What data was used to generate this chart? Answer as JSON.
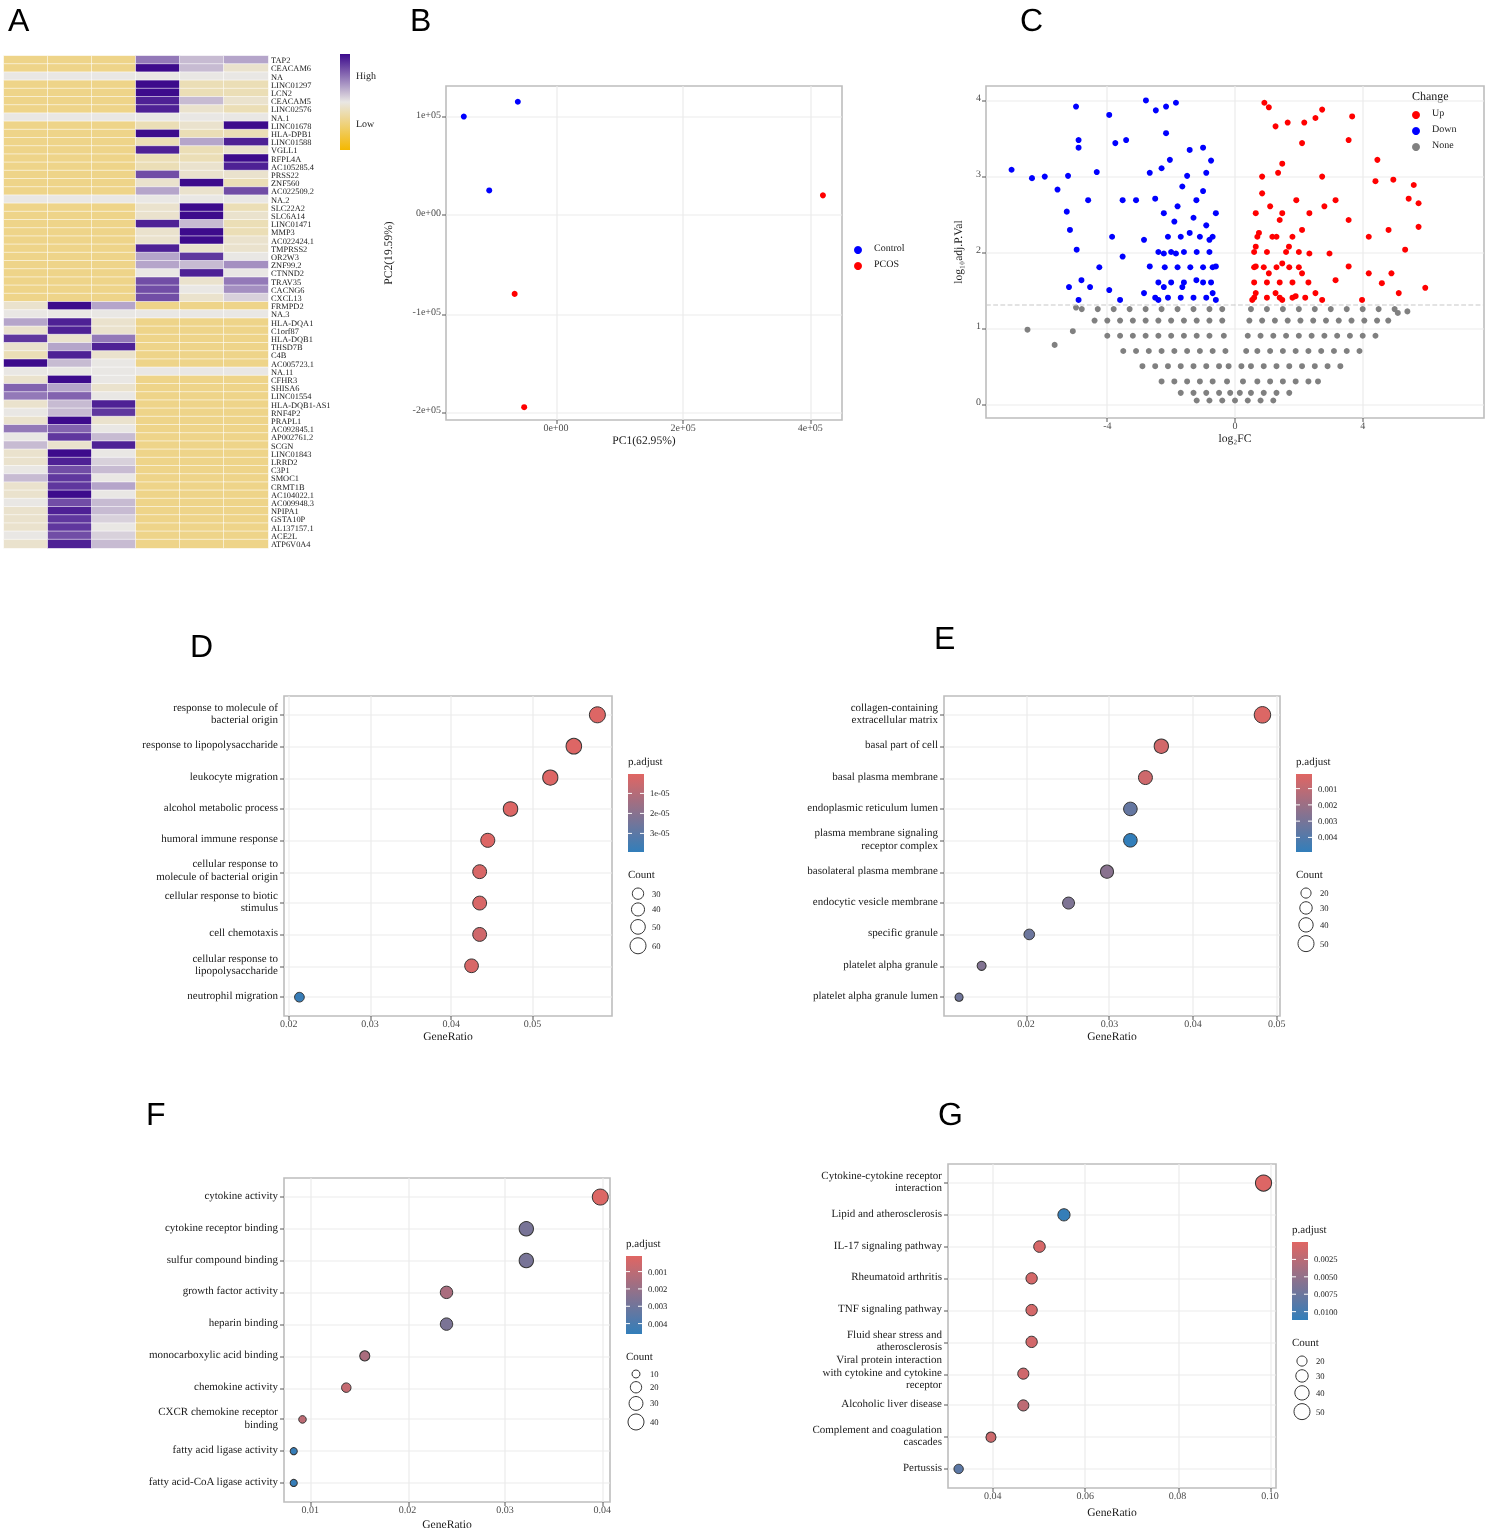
{
  "chart_data": [
    {
      "type": "heatmap",
      "title": "A",
      "categories": [
        null,
        null,
        null,
        null,
        null,
        null
      ],
      "y_categories": [
        "TAP2",
        "CEACAM6",
        "NA",
        "LINC01297",
        "LCN2",
        "CEACAM5",
        "LINC02576",
        "NA.1",
        "LINC01678",
        "HLA-DPB1",
        "LINC01588",
        "VGLL1",
        "RFPL4A",
        "AC105285.4",
        "PRSS22",
        "ZNF560",
        "AC022509.2",
        "NA.2",
        "SLC22A2",
        "SLC6A14",
        "LINC01471",
        "MMP3",
        "AC022424.1",
        "TMPRSS2",
        "OR2W3",
        "ZNF99.2",
        "CTNND2",
        "TRAV35",
        "CACNG6",
        "CXCL13",
        "FRMPD2",
        "NA.3",
        "HLA-DQA1",
        "C1orf87",
        "HLA-DQB1",
        "THSD7B",
        "C4B",
        "AC005723.1",
        "NA.11",
        "CFHR3",
        "SHISA6",
        "LINC01554",
        "HLA-DQB1-AS1",
        "RNF4P2",
        "PRAPL1",
        "AC092845.1",
        "AP002761.2",
        "SCGN",
        "LINC01843",
        "LRRD2",
        "C3P1",
        "SMOC1",
        "CRMT1B",
        "AC104022.1",
        "AC009948.3",
        "NPIPA1",
        "GSTA10P",
        "AL137157.1",
        "ACE2L",
        "ATP6V0A4"
      ],
      "cells": [
        [
          0.3,
          0.3,
          0.3,
          0.75,
          0.6,
          0.65
        ],
        [
          0.3,
          0.3,
          0.3,
          1,
          0.6,
          0.45
        ],
        [
          0.5,
          0.5,
          0.5,
          0.5,
          0.5,
          0.5
        ],
        [
          0.3,
          0.3,
          0.3,
          1,
          0.4,
          0.4
        ],
        [
          0.3,
          0.3,
          0.3,
          1,
          0.4,
          0.4
        ],
        [
          0.3,
          0.3,
          0.3,
          0.95,
          0.6,
          0.45
        ],
        [
          0.3,
          0.3,
          0.3,
          0.95,
          0.45,
          0.4
        ],
        [
          0.5,
          0.5,
          0.5,
          0.5,
          0.5,
          0.5
        ],
        [
          0.3,
          0.3,
          0.3,
          0.4,
          0.45,
          1
        ],
        [
          0.3,
          0.3,
          0.3,
          1,
          0.4,
          0.4
        ],
        [
          0.3,
          0.3,
          0.3,
          0.4,
          0.65,
          0.95
        ],
        [
          0.3,
          0.3,
          0.3,
          0.95,
          0.4,
          0.45
        ],
        [
          0.3,
          0.3,
          0.3,
          0.4,
          0.4,
          1
        ],
        [
          0.3,
          0.3,
          0.3,
          0.4,
          0.45,
          0.95
        ],
        [
          0.3,
          0.3,
          0.3,
          0.85,
          0.45,
          0.45
        ],
        [
          0.3,
          0.3,
          0.3,
          0.45,
          1,
          0.4
        ],
        [
          0.3,
          0.3,
          0.3,
          0.65,
          0.45,
          0.85
        ],
        [
          0.5,
          0.5,
          0.5,
          0.5,
          0.5,
          0.5
        ],
        [
          0.3,
          0.3,
          0.3,
          0.45,
          1,
          0.4
        ],
        [
          0.3,
          0.3,
          0.3,
          0.45,
          1,
          0.45
        ],
        [
          0.3,
          0.3,
          0.3,
          0.95,
          0.6,
          0.4
        ],
        [
          0.3,
          0.3,
          0.3,
          0.45,
          1,
          0.4
        ],
        [
          0.3,
          0.3,
          0.3,
          0.45,
          1,
          0.45
        ],
        [
          0.3,
          0.3,
          0.3,
          0.95,
          0.45,
          0.45
        ],
        [
          0.3,
          0.3,
          0.3,
          0.65,
          0.9,
          0.5
        ],
        [
          0.3,
          0.3,
          0.3,
          0.65,
          0.6,
          0.7
        ],
        [
          0.3,
          0.3,
          0.3,
          0.5,
          0.95,
          0.5
        ],
        [
          0.3,
          0.3,
          0.3,
          0.85,
          0.45,
          0.75
        ],
        [
          0.3,
          0.3,
          0.3,
          0.85,
          0.5,
          0.7
        ],
        [
          0.3,
          0.3,
          0.3,
          0.85,
          0.45,
          0.55
        ],
        [
          0.45,
          1,
          0.65,
          0.3,
          0.3,
          0.3
        ],
        [
          0.5,
          0.5,
          0.5,
          0.5,
          0.5,
          0.5
        ],
        [
          0.65,
          0.95,
          0.45,
          0.3,
          0.3,
          0.3
        ],
        [
          0.45,
          0.95,
          0.45,
          0.3,
          0.3,
          0.3
        ],
        [
          0.9,
          0.45,
          0.75,
          0.3,
          0.3,
          0.3
        ],
        [
          0.45,
          0.65,
          0.95,
          0.3,
          0.3,
          0.3
        ],
        [
          0.4,
          0.95,
          0.45,
          0.3,
          0.3,
          0.3
        ],
        [
          1,
          0.6,
          0.5,
          0.3,
          0.3,
          0.3
        ],
        [
          0.5,
          0.5,
          0.5,
          0.5,
          0.5,
          0.5
        ],
        [
          0.45,
          1,
          0.5,
          0.3,
          0.3,
          0.3
        ],
        [
          0.8,
          0.65,
          0.45,
          0.3,
          0.3,
          0.3
        ],
        [
          0.75,
          0.8,
          0.5,
          0.3,
          0.3,
          0.3
        ],
        [
          0.45,
          0.6,
          0.95,
          0.3,
          0.3,
          0.3
        ],
        [
          0.5,
          0.6,
          0.9,
          0.3,
          0.3,
          0.3
        ],
        [
          0.45,
          1,
          0.45,
          0.3,
          0.3,
          0.3
        ],
        [
          0.75,
          0.8,
          0.5,
          0.3,
          0.3,
          0.3
        ],
        [
          0.5,
          0.9,
          0.6,
          0.3,
          0.3,
          0.3
        ],
        [
          0.6,
          0.45,
          0.95,
          0.3,
          0.3,
          0.3
        ],
        [
          0.45,
          1,
          0.5,
          0.3,
          0.3,
          0.3
        ],
        [
          0.45,
          0.95,
          0.55,
          0.3,
          0.3,
          0.3
        ],
        [
          0.5,
          0.85,
          0.6,
          0.3,
          0.3,
          0.3
        ],
        [
          0.6,
          0.9,
          0.5,
          0.3,
          0.3,
          0.3
        ],
        [
          0.45,
          0.9,
          0.65,
          0.3,
          0.3,
          0.3
        ],
        [
          0.45,
          1,
          0.5,
          0.3,
          0.3,
          0.3
        ],
        [
          0.5,
          0.85,
          0.6,
          0.3,
          0.3,
          0.3
        ],
        [
          0.45,
          0.95,
          0.6,
          0.3,
          0.3,
          0.3
        ],
        [
          0.45,
          0.9,
          0.55,
          0.3,
          0.3,
          0.3
        ],
        [
          0.45,
          0.9,
          0.5,
          0.3,
          0.3,
          0.3
        ],
        [
          0.5,
          0.85,
          0.55,
          0.3,
          0.3,
          0.3
        ],
        [
          0.45,
          0.95,
          0.6,
          0.3,
          0.3,
          0.3
        ]
      ],
      "clim": [
        0,
        1
      ],
      "cticks": [
        {
          "value": 0.75,
          "label": "High"
        },
        {
          "value": 0.25,
          "label": "Low"
        }
      ]
    },
    {
      "type": "scatter",
      "title": "B",
      "xlabel": "PC1(62.95%)",
      "ylabel": "PC2(19.59%)",
      "series": [
        {
          "name": "Control",
          "color": "#0000ff",
          "x": [
            -145000,
            -60000,
            -105000
          ],
          "values": [
            100000,
            115000,
            25000
          ]
        },
        {
          "name": "PCOS",
          "color": "#ff0000",
          "x": [
            -65000,
            -50000,
            420000
          ],
          "values": [
            -80000,
            -195000,
            20000
          ]
        }
      ],
      "xlim": [
        -173000,
        450000
      ],
      "ylim": [
        -208000,
        131000
      ],
      "xticks": [
        {
          "value": 0,
          "label": "0e+00"
        },
        {
          "value": 200000,
          "label": "2e+05"
        },
        {
          "value": 400000,
          "label": "4e+05"
        }
      ],
      "yticks": [
        {
          "value": -200000,
          "label": "-2e+05"
        },
        {
          "value": -100000,
          "label": "-1e+05"
        },
        {
          "value": 0,
          "label": "0e+00"
        },
        {
          "value": 100000,
          "label": "1e+05"
        }
      ],
      "grid": true,
      "legend": "right",
      "marker": "circle"
    },
    {
      "type": "scatter",
      "title": "C",
      "xlabel": "log₂FC",
      "ylabel": "log₁₀adj.P.Val",
      "legend_title": "Change",
      "series": [
        {
          "name": "Up",
          "color": "#ff0000",
          "x": [
            0.92,
            1.06,
            1.27,
            1.65,
            2.17,
            2.52,
            2.73,
            3.67,
            2.1,
            3.56,
            4.46,
            4.4,
            4.96,
            5.6,
            5.44,
            5.75,
            5.75,
            4.81,
            5.33,
            4.19,
            3.56,
            3.15,
            2.73,
            1.48,
            0.85,
            0.85,
            1.35,
            1.92,
            2.33,
            1.48,
            0.75,
            1.17,
            1.69,
            2.33,
            2.96,
            3.56,
            4.19,
            4.6,
            5.13,
            5.96,
            4.9,
            3.15,
            2.52,
            1.9,
            1.27,
            0.65,
            0.65,
            1.06,
            1.48,
            2.1,
            0.65,
            0.54,
            1.48,
            2.73,
            3.98,
            2.1,
            1.4,
            0.65,
            0.6,
            1.0,
            1.4,
            1.8,
            2.2,
            0.6,
            1.0,
            1.4,
            1.8,
            2.3,
            0.6,
            0.9,
            1.3,
            1.7,
            2.0,
            0.6,
            1.0,
            1.6,
            2.0,
            0.7,
            1.3,
            1.8,
            2.8,
            1.1
          ],
          "values": [
            3.96,
            3.9,
            3.65,
            3.7,
            3.7,
            3.76,
            3.87,
            3.78,
            3.43,
            3.47,
            3.21,
            2.93,
            2.95,
            2.88,
            2.7,
            2.64,
            2.33,
            2.29,
            2.03,
            2.2,
            2.42,
            2.68,
            2.99,
            3.16,
            2.99,
            2.77,
            3.04,
            2.68,
            2.51,
            2.51,
            2.25,
            2.2,
            2.07,
            1.98,
            1.98,
            1.81,
            1.72,
            1.59,
            1.46,
            1.53,
            1.72,
            1.63,
            1.46,
            1.42,
            1.46,
            1.46,
            1.81,
            1.72,
            1.85,
            1.72,
            2.07,
            1.37,
            1.37,
            1.37,
            1.37,
            2.29,
            2.42,
            2.51,
            1.4,
            1.4,
            1.4,
            1.4,
            1.4,
            1.6,
            1.6,
            1.6,
            1.6,
            1.6,
            1.8,
            1.8,
            1.8,
            1.8,
            1.8,
            2.0,
            2.0,
            2.0,
            2.0,
            2.2,
            2.2,
            2.2,
            2.6,
            2.6
          ]
        },
        {
          "name": "Down",
          "color": "#0000ff",
          "x": [
            -7.0,
            -6.36,
            -5.96,
            -5.56,
            -5.23,
            -4.98,
            -4.9,
            -4.9,
            -5.27,
            -5.17,
            -4.96,
            -4.81,
            -4.54,
            -4.6,
            -4.33,
            -3.94,
            -3.75,
            -3.41,
            -3.52,
            -3.85,
            -4.25,
            -3.94,
            -3.52,
            -3.1,
            -2.79,
            -2.48,
            -2.16,
            -1.85,
            -2.16,
            -2.67,
            -2.04,
            -1.42,
            -1.0,
            -0.9,
            -1.65,
            -2.23,
            -2.85,
            -2.67,
            -2.85,
            -2.23,
            -1.65,
            -1.21,
            -0.7,
            -0.6,
            -0.8,
            -0.6,
            -1.21,
            -1.85,
            -2.23,
            -1.42,
            -0.6,
            -2.4,
            -3.6,
            -4.9,
            -5.2,
            -2.5,
            -2.1,
            -1.7,
            -1.3,
            -0.9,
            -2.4,
            -2.0,
            -1.6,
            -1.0,
            -0.75,
            -2.2,
            -1.8,
            -1.4,
            -1.0,
            -0.7,
            -2.4,
            -2.0,
            -1.6,
            -1.2,
            -0.8,
            -2.1,
            -1.7,
            -1.1,
            -0.7,
            -1.9,
            -1.3,
            -0.9,
            -2.5,
            -1.8,
            -1.0,
            -1.5,
            -2.3,
            -0.75
          ],
          "values": [
            3.08,
            2.97,
            2.99,
            2.82,
            3.0,
            3.91,
            3.47,
            3.37,
            2.53,
            2.29,
            2.03,
            1.63,
            1.54,
            2.68,
            3.05,
            3.8,
            3.43,
            3.47,
            2.68,
            2.2,
            1.8,
            1.5,
            1.94,
            2.68,
            3.99,
            3.86,
            3.91,
            3.96,
            3.56,
            3.04,
            3.21,
            3.34,
            3.37,
            3.04,
            2.86,
            2.51,
            2.16,
            1.81,
            1.46,
            1.54,
            1.54,
            1.63,
            1.46,
            1.81,
            2.16,
            2.51,
            2.68,
            1.98,
            1.98,
            2.25,
            1.37,
            1.37,
            1.37,
            1.37,
            1.54,
            1.4,
            1.4,
            1.4,
            1.4,
            1.4,
            1.6,
            1.6,
            1.6,
            1.6,
            1.6,
            1.8,
            1.8,
            1.8,
            1.8,
            1.8,
            2.0,
            2.0,
            2.0,
            2.0,
            2.0,
            2.2,
            2.2,
            2.2,
            2.2,
            2.4,
            2.45,
            2.35,
            2.7,
            2.6,
            2.8,
            3.0,
            3.1,
            3.2
          ]
        },
        {
          "name": "None",
          "color": "#808080",
          "x": [
            -1.2,
            -0.8,
            -0.4,
            0,
            0.4,
            0.8,
            1.2,
            -1.7,
            -1.3,
            -0.9,
            -0.5,
            -0.15,
            0.15,
            0.5,
            0.9,
            1.3,
            1.7,
            -2.3,
            -1.9,
            -1.5,
            -1.1,
            -0.7,
            -0.25,
            0.25,
            0.7,
            1.1,
            1.5,
            1.9,
            2.3,
            2.6,
            -2.9,
            -2.5,
            -2.1,
            -1.7,
            -1.3,
            -0.9,
            -0.5,
            -0.2,
            0.2,
            0.5,
            0.9,
            1.3,
            1.7,
            2.1,
            2.5,
            2.9,
            3.3,
            -3.5,
            -3.1,
            -2.7,
            -2.3,
            -1.9,
            -1.5,
            -1.1,
            -0.7,
            -0.3,
            0.35,
            0.7,
            1.1,
            1.5,
            1.9,
            2.3,
            2.7,
            3.1,
            3.5,
            3.9,
            -4.0,
            -3.6,
            -3.2,
            -2.8,
            -2.4,
            -2.0,
            -1.6,
            -1.2,
            -0.8,
            -0.35,
            0.4,
            0.8,
            1.2,
            1.6,
            2.0,
            2.4,
            2.8,
            3.2,
            3.6,
            4.0,
            4.4,
            -4.4,
            -4.0,
            -3.6,
            -3.2,
            -2.8,
            -2.4,
            -2.0,
            -1.6,
            -1.2,
            -0.8,
            -0.4,
            0.45,
            0.85,
            1.25,
            1.65,
            2.05,
            2.45,
            2.85,
            3.25,
            3.65,
            4.05,
            4.45,
            4.8,
            -4.8,
            -4.3,
            -3.8,
            -3.3,
            -2.8,
            -2.3,
            -1.8,
            -1.3,
            -0.8,
            -0.4,
            0.5,
            1.0,
            1.5,
            2.0,
            2.5,
            3.0,
            3.5,
            4.0,
            4.5,
            5.0,
            -6.5,
            -5.65,
            -5.08,
            -4.98,
            5.4,
            5.1
          ],
          "values": [
            0.05,
            0.05,
            0.05,
            0.05,
            0.05,
            0.05,
            0.05,
            0.15,
            0.15,
            0.15,
            0.15,
            0.15,
            0.15,
            0.15,
            0.15,
            0.15,
            0.15,
            0.3,
            0.3,
            0.3,
            0.3,
            0.3,
            0.3,
            0.3,
            0.3,
            0.3,
            0.3,
            0.3,
            0.3,
            0.3,
            0.5,
            0.5,
            0.5,
            0.5,
            0.5,
            0.5,
            0.5,
            0.5,
            0.5,
            0.5,
            0.5,
            0.5,
            0.5,
            0.5,
            0.5,
            0.5,
            0.5,
            0.7,
            0.7,
            0.7,
            0.7,
            0.7,
            0.7,
            0.7,
            0.7,
            0.7,
            0.7,
            0.7,
            0.7,
            0.7,
            0.7,
            0.7,
            0.7,
            0.7,
            0.7,
            0.7,
            0.9,
            0.9,
            0.9,
            0.9,
            0.9,
            0.9,
            0.9,
            0.9,
            0.9,
            0.9,
            0.9,
            0.9,
            0.9,
            0.9,
            0.9,
            0.9,
            0.9,
            0.9,
            0.9,
            0.9,
            0.9,
            1.1,
            1.1,
            1.1,
            1.1,
            1.1,
            1.1,
            1.1,
            1.1,
            1.1,
            1.1,
            1.1,
            1.1,
            1.1,
            1.1,
            1.1,
            1.1,
            1.1,
            1.1,
            1.1,
            1.1,
            1.1,
            1.1,
            1.1,
            1.25,
            1.25,
            1.25,
            1.25,
            1.25,
            1.25,
            1.25,
            1.25,
            1.25,
            1.25,
            1.25,
            1.25,
            1.25,
            1.25,
            1.25,
            1.25,
            1.25,
            1.25,
            1.25,
            1.25,
            0.98,
            0.78,
            0.96,
            1.27,
            1.22,
            1.2
          ]
        }
      ],
      "xlim": [
        -7.8,
        7.8
      ],
      "ylim": [
        -0.18,
        4.18
      ],
      "xticks": [
        -4,
        0,
        4
      ],
      "yticks": [
        0,
        1,
        2,
        3,
        4
      ],
      "grid": true,
      "legend": "top right",
      "marker": "circle",
      "ref_lines": [
        {
          "axis": "y",
          "value": 1.3,
          "color": "#c8c8c8",
          "line_style": "dashed"
        }
      ]
    },
    {
      "type": "bubble",
      "title": "D",
      "orientation": "horizontal",
      "xlabel": "GeneRatio",
      "clabel": "p.adjust",
      "legend_title": "Count",
      "categories": [
        "response to molecule of\nbacterial origin",
        "response to lipopolysaccharide",
        "leukocyte migration",
        "alcohol metabolic process",
        "humoral immune response",
        "cellular response to\nmolecule of bacterial origin",
        "cellular response to biotic\nstimulus",
        "cell chemotaxis",
        "cellular response to\nlipopolysaccharide",
        "neutrophil migration"
      ],
      "values": [
        0.058,
        0.0551,
        0.0522,
        0.0473,
        0.0445,
        0.0435,
        0.0435,
        0.0435,
        0.0425,
        0.0213
      ],
      "sizes": [
        60,
        57,
        54,
        49,
        46,
        45,
        45,
        45,
        44,
        22
      ],
      "cvalues": [
        1e-06,
        1e-06,
        1e-06,
        1e-06,
        1e-06,
        2e-06,
        2e-06,
        4e-06,
        2e-06,
        3.8e-05
      ],
      "xlim": [
        0.0194,
        0.0598
      ],
      "xticks": [
        0.02,
        0.03,
        0.04,
        0.05
      ],
      "clim": [
        3.93e-05,
        3e-07
      ],
      "cticks": [
        {
          "value": 1e-05,
          "label": "1e-05"
        },
        {
          "value": 2e-05,
          "label": "2e-05"
        },
        {
          "value": 3e-05,
          "label": "3e-05"
        }
      ],
      "size_legend": [
        30,
        40,
        50,
        60
      ],
      "grid": true,
      "marker": "circle"
    },
    {
      "type": "bubble",
      "title": "E",
      "orientation": "horizontal",
      "xlabel": "GeneRatio",
      "clabel": "p.adjust",
      "legend_title": "Count",
      "categories": [
        "collagen-containing\nextracellular matrix",
        "basal part of cell",
        "basal plasma membrane",
        "endoplasmic reticulum lumen",
        "plasma membrane signaling\nreceptor complex",
        "basolateral plasma membrane",
        "endocytic vesicle membrane",
        "specific granule",
        "platelet alpha granule",
        "platelet alpha granule lumen"
      ],
      "values": [
        0.0483,
        0.0362,
        0.0343,
        0.0325,
        0.0325,
        0.0297,
        0.0251,
        0.0204,
        0.0147,
        0.012
      ],
      "sizes": [
        53,
        40,
        38,
        36,
        36,
        33,
        28,
        22,
        16,
        13
      ],
      "cvalues": [
        0.0002,
        0.0005,
        0.0006,
        0.0035,
        0.0049,
        0.0025,
        0.0028,
        0.0033,
        0.0027,
        0.0032
      ],
      "xlim": [
        0.0102,
        0.0504
      ],
      "xticks": [
        0.02,
        0.03,
        0.04,
        0.05
      ],
      "clim": [
        0.0049,
        0.0001
      ],
      "cticks": [
        0.001,
        0.002,
        0.003,
        0.004
      ],
      "size_legend": [
        20,
        30,
        40,
        50
      ],
      "grid": true,
      "marker": "circle"
    },
    {
      "type": "bubble",
      "title": "F",
      "orientation": "horizontal",
      "xlabel": "GeneRatio",
      "clabel": "p.adjust",
      "legend_title": "Count",
      "categories": [
        "cytokine activity",
        "cytokine receptor binding",
        "sulfur compound binding",
        "growth factor activity",
        "heparin binding",
        "monocarboxylic acid binding",
        "chemokine activity",
        "CXCR chemokine receptor\nbinding",
        "fatty acid ligase activity",
        "fatty acid-CoA ligase activity"
      ],
      "values": [
        0.0398,
        0.0322,
        0.0322,
        0.024,
        0.024,
        0.0156,
        0.0137,
        0.0092,
        0.0083,
        0.0083
      ],
      "sizes": [
        40,
        32,
        32,
        24,
        24,
        16,
        14,
        9,
        8,
        8
      ],
      "cvalues": [
        0.0002,
        0.0028,
        0.0028,
        0.0015,
        0.0027,
        0.0015,
        0.0008,
        0.001,
        0.0045,
        0.0045
      ],
      "xlim": [
        0.0073,
        0.0408
      ],
      "xticks": [
        0.01,
        0.02,
        0.03,
        0.04
      ],
      "clim": [
        0.0046,
        0.0001
      ],
      "cticks": [
        0.001,
        0.002,
        0.003,
        0.004
      ],
      "size_legend": [
        10,
        20,
        30,
        40
      ],
      "grid": true,
      "marker": "circle"
    },
    {
      "type": "bubble",
      "title": "G",
      "orientation": "horizontal",
      "xlabel": "GeneRatio",
      "clabel": "p.adjust",
      "legend_title": "Count",
      "categories": [
        "Cytokine-cytokine receptor\ninteraction",
        "Lipid and atherosclerosis",
        "IL-17 signaling pathway",
        "Rheumatoid arthritis",
        "TNF signaling pathway",
        "Fluid shear stress and\natherosclerosis",
        "Viral protein interaction\nwith cytokine and cytokine\nreceptor",
        "Alcoholic liver disease",
        "Complement and coagulation\ncascades",
        "Pertussis"
      ],
      "values": [
        0.0986,
        0.0554,
        0.0501,
        0.0484,
        0.0484,
        0.0484,
        0.0466,
        0.0466,
        0.0396,
        0.0326
      ],
      "sizes": [
        51,
        29,
        26,
        25,
        25,
        25,
        24,
        24,
        20,
        17
      ],
      "cvalues": [
        0.0002,
        0.011,
        0.0006,
        0.0008,
        0.0008,
        0.0009,
        0.0011,
        0.0022,
        0.0012,
        0.0085
      ],
      "xlim": [
        0.0303,
        0.1013
      ],
      "xticks": [
        0.04,
        0.06,
        0.08,
        {
          "value": 0.1,
          "label": "0.10"
        }
      ],
      "clim": [
        0.0112,
        0
      ],
      "cticks": [
        0.0025,
        {
          "value": 0.005,
          "label": "0.0050"
        },
        0.0075,
        {
          "value": 0.01,
          "label": "0.0100"
        }
      ],
      "size_legend": [
        20,
        30,
        40,
        50
      ],
      "grid": true,
      "marker": "circle"
    }
  ]
}
